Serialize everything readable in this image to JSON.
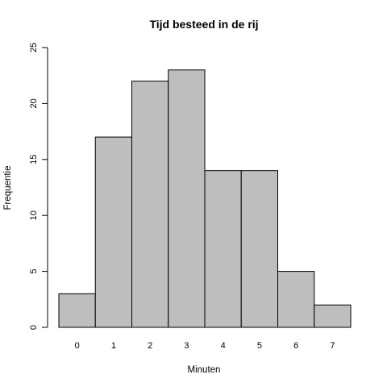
{
  "chart_data": {
    "type": "bar",
    "title": "Tijd besteed in de rij",
    "xlabel": "Minuten",
    "ylabel": "Frequentie",
    "categories": [
      "0",
      "1",
      "2",
      "3",
      "4",
      "5",
      "6",
      "7"
    ],
    "values": [
      3,
      17,
      22,
      23,
      14,
      14,
      5,
      2
    ],
    "ylim": [
      0,
      25
    ],
    "yticks": [
      "0",
      "5",
      "10",
      "15",
      "20",
      "25"
    ],
    "grid": false,
    "colors": {
      "bar_fill": "#bebebe",
      "bar_stroke": "#000000",
      "axis": "#000000",
      "background": "#ffffff"
    }
  }
}
